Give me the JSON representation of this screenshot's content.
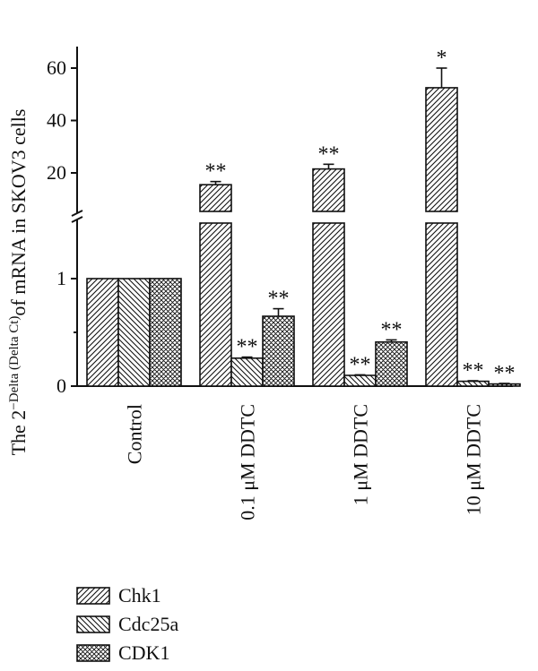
{
  "chart_data": {
    "type": "bar",
    "ylabel": {
      "prefix": "The 2",
      "superscript": "−Delta (Delta Ct)",
      "suffix": "of mRNA in SKOV3 cells"
    },
    "xlabel": "",
    "categories": [
      "Control",
      "0.1 μM DDTC",
      "1 μM DDTC",
      "10 μM DDTC"
    ],
    "axis": {
      "broken": true,
      "lower_range": [
        0,
        1.5
      ],
      "upper_range": [
        10,
        62
      ],
      "lower_ticks": [
        "0",
        "1"
      ],
      "upper_ticks": [
        "20",
        "40",
        "60"
      ]
    },
    "series": [
      {
        "name": "Chk1",
        "pattern": "diagonal-hatch-dense",
        "values": [
          1.0,
          15.5,
          21.5,
          52.5
        ],
        "errors": [
          0,
          1.2,
          1.8,
          7.5
        ],
        "significance": [
          "",
          "**",
          "**",
          "*"
        ]
      },
      {
        "name": "Cdc25a",
        "pattern": "diagonal-hatch-wide",
        "values": [
          1.0,
          0.26,
          0.1,
          0.045
        ],
        "errors": [
          0,
          0.01,
          0.005,
          0.005
        ],
        "significance": [
          "",
          "**",
          "**",
          "**"
        ]
      },
      {
        "name": "CDK1",
        "pattern": "cross-hatch",
        "values": [
          1.0,
          0.65,
          0.41,
          0.02
        ],
        "errors": [
          0,
          0.07,
          0.02,
          0.005
        ],
        "significance": [
          "",
          "**",
          "**",
          "**"
        ]
      }
    ],
    "legend_position": "bottom-left",
    "grid": false
  }
}
